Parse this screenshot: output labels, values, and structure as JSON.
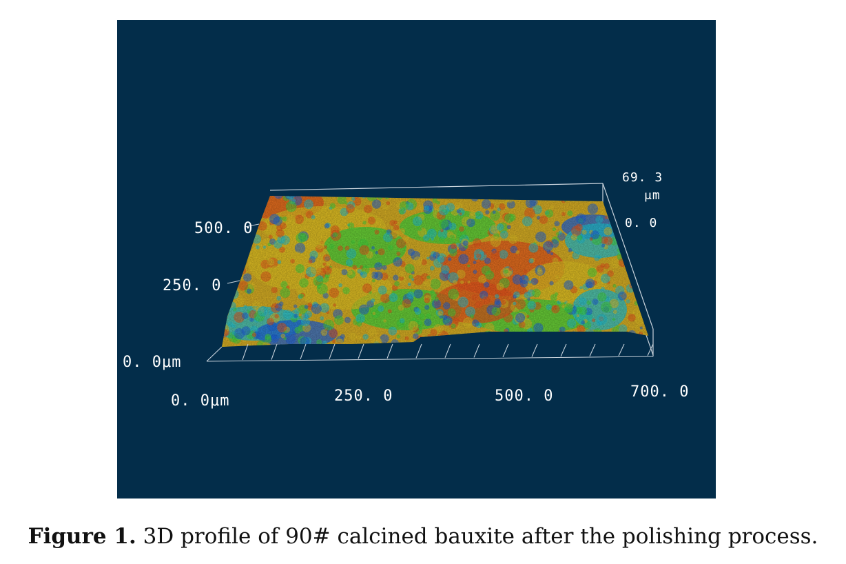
{
  "figure": {
    "axis_labels": {
      "x_origin": "0. 0μm",
      "x_250": "250. 0",
      "x_500": "500. 0",
      "x_700": "700. 0",
      "y_origin": "0. 0μm",
      "y_250": "250. 0",
      "y_500": "500. 0",
      "z_max": "69. 3",
      "z_unit": "μm",
      "z_min": "0. 0"
    },
    "colors": {
      "background": "#032d4a",
      "height_low": "#1e5fd0",
      "height_mid_low": "#1fb7c8",
      "height_mid": "#3ec93a",
      "height_mid_high": "#d2b522",
      "height_high": "#d8521c",
      "axis_lines": "#c9d3dc"
    }
  },
  "caption": {
    "label": "Figure 1.",
    "text": " 3D profile of 90# calcined bauxite after the polishing process."
  }
}
